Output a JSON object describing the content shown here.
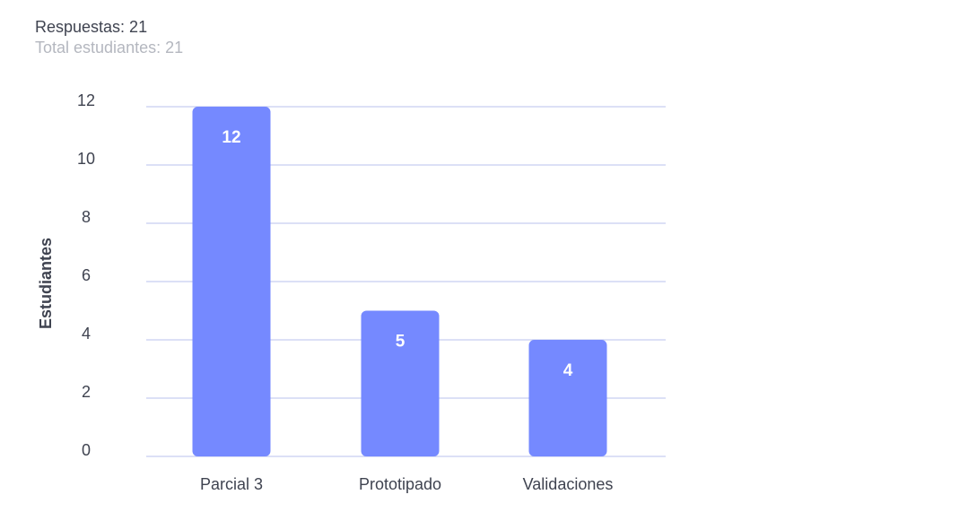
{
  "summary": {
    "responses": "Respuestas: 21",
    "total_students": "Total estudiantes: 21"
  },
  "colors": {
    "bar": "#7589ff",
    "grid": "#b9c1ee",
    "text": "#3f4350",
    "muted_text": "#b4b7bf"
  },
  "chart_data": {
    "type": "bar",
    "categories": [
      "Parcial 3",
      "Prototipado",
      "Validaciones"
    ],
    "values": [
      12,
      5,
      4
    ],
    "data_labels": [
      "12",
      "5",
      "4"
    ],
    "ylabel": "Estudiantes",
    "xlabel": "",
    "ylim": [
      0,
      12
    ],
    "yticks": [
      0,
      2,
      4,
      6,
      8,
      10,
      12
    ],
    "grid": true
  }
}
